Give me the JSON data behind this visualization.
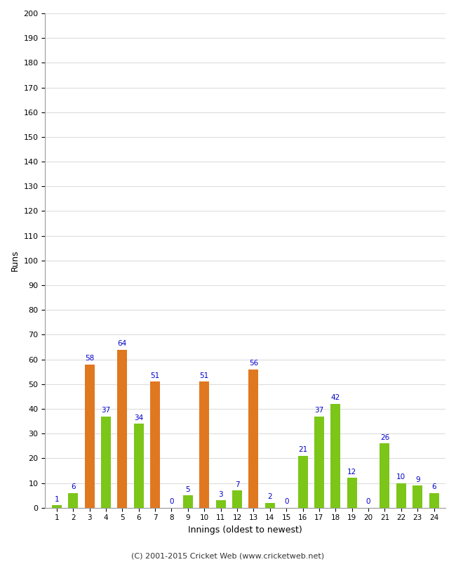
{
  "innings": [
    1,
    2,
    3,
    4,
    5,
    6,
    7,
    8,
    9,
    10,
    11,
    12,
    13,
    14,
    15,
    16,
    17,
    18,
    19,
    20,
    21,
    22,
    23,
    24
  ],
  "values": [
    1,
    6,
    58,
    37,
    64,
    34,
    51,
    0,
    5,
    51,
    3,
    7,
    56,
    2,
    0,
    21,
    37,
    42,
    12,
    0,
    26,
    10,
    9,
    6
  ],
  "colors": [
    "#7bc618",
    "#7bc618",
    "#e07820",
    "#7bc618",
    "#e07820",
    "#7bc618",
    "#e07820",
    "#7bc618",
    "#7bc618",
    "#e07820",
    "#7bc618",
    "#7bc618",
    "#e07820",
    "#7bc618",
    "#7bc618",
    "#7bc618",
    "#7bc618",
    "#7bc618",
    "#7bc618",
    "#7bc618",
    "#7bc618",
    "#7bc618",
    "#7bc618",
    "#7bc618"
  ],
  "xlabel": "Innings (oldest to newest)",
  "ylabel": "Runs",
  "ylim": [
    0,
    200
  ],
  "yticks": [
    0,
    10,
    20,
    30,
    40,
    50,
    60,
    70,
    80,
    90,
    100,
    110,
    120,
    130,
    140,
    150,
    160,
    170,
    180,
    190,
    200
  ],
  "footer": "(C) 2001-2015 Cricket Web (www.cricketweb.net)",
  "label_color": "#0000cc",
  "background_color": "#ffffff",
  "plot_background": "#ffffff",
  "grid_color": "#dddddd",
  "bar_width": 0.6
}
